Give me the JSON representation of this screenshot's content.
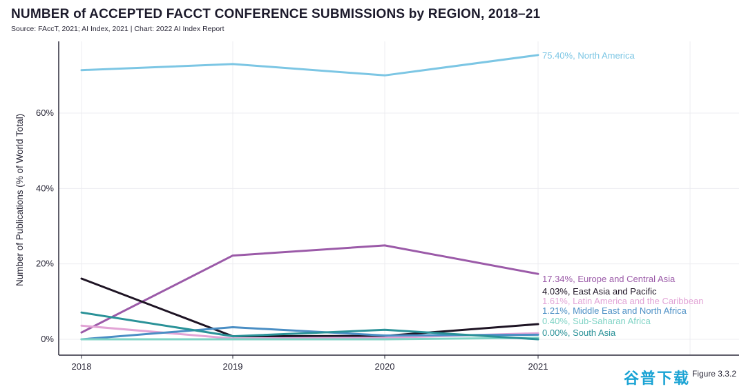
{
  "header": {
    "title": "NUMBER of ACCEPTED FACCT CONFERENCE SUBMISSIONS by REGION, 2018–21",
    "subtitle": "Source: FAccT, 2021; AI Index, 2021 | Chart: 2022 AI Index Report"
  },
  "footer": {
    "figure_label": "Figure 3.3.2",
    "watermark": "谷普下载"
  },
  "chart_data": {
    "type": "line",
    "title": "NUMBER of ACCEPTED FACCT CONFERENCE SUBMISSIONS by REGION, 2018–21",
    "xlabel": "",
    "ylabel": "Number of Publications (% of World Total)",
    "x": [
      "2018",
      "2019",
      "2020",
      "2021"
    ],
    "ylim": [
      -4,
      80
    ],
    "yticks": [
      0,
      20,
      40,
      60
    ],
    "ytick_labels": [
      "0%",
      "20%",
      "40%",
      "60%"
    ],
    "grid": true,
    "series": [
      {
        "name": "North America",
        "color": "#7cc6e4",
        "values": [
          71.4,
          73.0,
          70.0,
          75.4
        ],
        "end_label": "75.40%, North America"
      },
      {
        "name": "Europe and Central Asia",
        "color": "#9b5aa8",
        "values": [
          1.8,
          22.2,
          24.9,
          17.34
        ],
        "end_label": "17.34%, Europe and Central Asia"
      },
      {
        "name": "East Asia and Pacific",
        "color": "#1e1424",
        "values": [
          16.1,
          0.8,
          0.9,
          4.03
        ],
        "end_label": "4.03%, East Asia and Pacific"
      },
      {
        "name": "Latin America and the Caribbean",
        "color": "#e2a4d6",
        "values": [
          3.6,
          0.2,
          0.4,
          1.61
        ],
        "end_label": "1.61%, Latin America and the Caribbean"
      },
      {
        "name": "Middle East and North Africa",
        "color": "#4a8ec4",
        "values": [
          0.0,
          3.2,
          1.0,
          1.21
        ],
        "end_label": "1.21%, Middle East and North Africa"
      },
      {
        "name": "Sub-Saharan Africa",
        "color": "#7fd3c5",
        "values": [
          0.0,
          0.0,
          0.0,
          0.4
        ],
        "end_label": "0.40%, Sub-Saharan Africa"
      },
      {
        "name": "South Asia",
        "color": "#2a9298",
        "values": [
          7.1,
          0.8,
          2.5,
          0.0
        ],
        "end_label": "0.00%, South Asia"
      }
    ]
  }
}
